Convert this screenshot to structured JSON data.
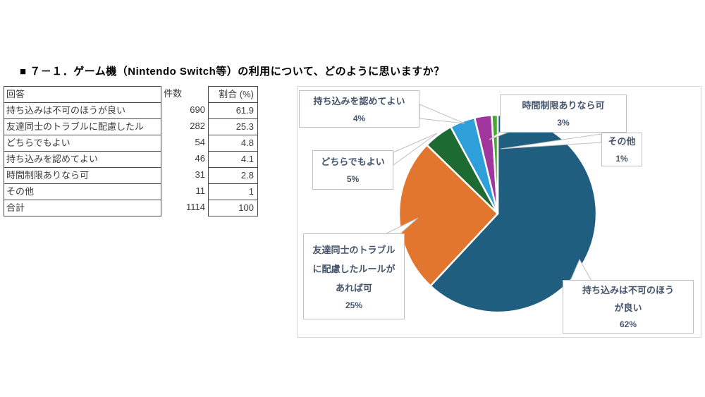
{
  "title": "■ ７－１．ゲーム機（Nintendo Switch等）の利用について、どのように思いますか？",
  "table": {
    "headers": [
      "回答",
      "件数",
      "割合 (%)"
    ],
    "rows": [
      {
        "label": "持ち込みは不可のほうが良い",
        "count": "690",
        "pct": "61.9"
      },
      {
        "label": "友達同士のトラブルに配慮したル",
        "count": "282",
        "pct": "25.3"
      },
      {
        "label": "どちらでもよい",
        "count": "54",
        "pct": "4.8"
      },
      {
        "label": "持ち込みを認めてよい",
        "count": "46",
        "pct": "4.1"
      },
      {
        "label": "時間制限ありなら可",
        "count": "31",
        "pct": "2.8"
      },
      {
        "label": "その他",
        "count": "11",
        "pct": "1"
      },
      {
        "label": "合計",
        "count": "1114",
        "pct": "100"
      }
    ]
  },
  "chart_data": {
    "type": "pie",
    "title": "",
    "legend": "none",
    "start_angle_deg": 0,
    "direction": "clockwise",
    "categories": [
      "持ち込みは不可のほうが良い",
      "友達同士のトラブルに配慮したルールがあれば可",
      "どちらでもよい",
      "持ち込みを認めてよい",
      "時間制限ありなら可",
      "その他"
    ],
    "values": [
      690,
      282,
      54,
      46,
      31,
      11
    ],
    "total": 1114,
    "percent_labels": [
      "62%",
      "25%",
      "5%",
      "4%",
      "3%",
      "1%"
    ],
    "colors": [
      "#1F5E7E",
      "#E2762E",
      "#1D6B33",
      "#2E9FD8",
      "#A2369F",
      "#4AA637"
    ],
    "slice_border_color": "#FFFFFF",
    "callout_text_color": "#44546A",
    "callouts": [
      {
        "id": "mitome",
        "lines": [
          "持ち込みを認めてよい"
        ],
        "pct": "4%"
      },
      {
        "id": "jikan",
        "lines": [
          "時間制限ありなら可"
        ],
        "pct": "3%"
      },
      {
        "id": "sonota",
        "lines": [
          "その他"
        ],
        "pct": "1%"
      },
      {
        "id": "dochira",
        "lines": [
          "どちらでもよい"
        ],
        "pct": "5%"
      },
      {
        "id": "tomodachi",
        "lines": [
          "友達同士のトラブル",
          "に配慮したルールが",
          "あれば可"
        ],
        "pct": "25%"
      },
      {
        "id": "fuka",
        "lines": [
          "持ち込みは不可のほう",
          "が良い"
        ],
        "pct": "62%"
      }
    ]
  }
}
